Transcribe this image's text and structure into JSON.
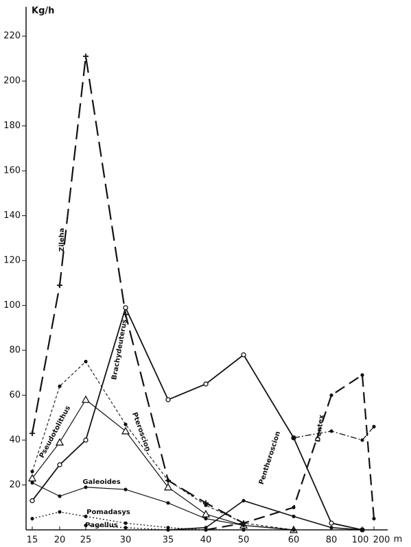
{
  "chart_data": {
    "type": "line",
    "y_label": "Kg/h",
    "x_unit": "m",
    "categories": [
      "15",
      "20",
      "25",
      "30",
      "35",
      "40",
      "50",
      "60",
      "80",
      "100",
      "200"
    ],
    "ylim": [
      0,
      230
    ],
    "yticks": [
      20,
      40,
      60,
      80,
      100,
      120,
      140,
      160,
      180,
      200,
      220
    ],
    "series": [
      {
        "name": "Zileha",
        "color": "#111",
        "values": [
          43,
          109,
          211,
          96,
          22,
          12,
          3,
          null,
          null,
          null,
          null
        ]
      },
      {
        "name": "Brachydeuterus",
        "color": "#111",
        "values": [
          13,
          29,
          40,
          99,
          58,
          65,
          78,
          41,
          3,
          0,
          null
        ]
      },
      {
        "name": "Pseudotolithus",
        "color": "#111",
        "values": [
          23,
          39,
          58,
          44,
          19,
          7,
          2,
          0,
          null,
          null,
          null
        ]
      },
      {
        "name": "Pteroscion",
        "color": "#111",
        "values": [
          26,
          64,
          75,
          47,
          22,
          11,
          3,
          0,
          null,
          null,
          null
        ]
      },
      {
        "name": "Galeoides",
        "color": "#111",
        "values": [
          21,
          15,
          19,
          18,
          12,
          5,
          2,
          0,
          null,
          null,
          null
        ]
      },
      {
        "name": "Pomadasys",
        "color": "#111",
        "values": [
          5,
          8,
          6,
          3,
          1,
          0,
          null,
          null,
          null,
          null,
          null
        ]
      },
      {
        "name": "Pagellus",
        "color": "#111",
        "values": [
          null,
          null,
          2,
          1,
          0,
          0,
          0,
          null,
          null,
          null,
          null
        ]
      },
      {
        "name": "Pentheroscion",
        "color": "#111",
        "values": [
          null,
          null,
          null,
          null,
          0,
          1,
          13,
          6,
          1,
          0,
          null
        ]
      },
      {
        "name": "Dentex",
        "color": "#111",
        "values": [
          null,
          null,
          null,
          null,
          null,
          0,
          3,
          10,
          60,
          69,
          5
        ]
      },
      {
        "color": "#111",
        "values": [
          null,
          null,
          null,
          null,
          null,
          null,
          null,
          41,
          44,
          40,
          46
        ]
      }
    ]
  }
}
